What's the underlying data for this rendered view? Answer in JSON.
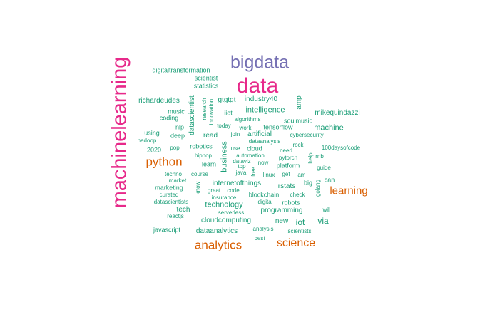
{
  "palette": {
    "pink": "#e7298a",
    "purple": "#7570b3",
    "orange": "#d95f02",
    "green": "#1b9e77"
  },
  "words": [
    {
      "text": "data",
      "color": "pink"
    },
    {
      "text": "bigdata",
      "color": "purple"
    },
    {
      "text": "machinelearning",
      "color": "pink"
    },
    {
      "text": "python",
      "color": "orange"
    },
    {
      "text": "learning",
      "color": "orange"
    },
    {
      "text": "analytics",
      "color": "orange"
    },
    {
      "text": "science",
      "color": "orange"
    },
    {
      "text": "digitaltransformation",
      "color": "green"
    },
    {
      "text": "scientist",
      "color": "green"
    },
    {
      "text": "statistics",
      "color": "green"
    },
    {
      "text": "richardeudes",
      "color": "green"
    },
    {
      "text": "datascientist",
      "color": "green"
    },
    {
      "text": "research",
      "color": "green"
    },
    {
      "text": "innovation",
      "color": "green"
    },
    {
      "text": "gtgtgt",
      "color": "green"
    },
    {
      "text": "industry40",
      "color": "green"
    },
    {
      "text": "amp",
      "color": "green"
    },
    {
      "text": "music",
      "color": "green"
    },
    {
      "text": "coding",
      "color": "green"
    },
    {
      "text": "iiot",
      "color": "green"
    },
    {
      "text": "intelligence",
      "color": "green"
    },
    {
      "text": "mikequindazzi",
      "color": "green"
    },
    {
      "text": "algorithms",
      "color": "green"
    },
    {
      "text": "soulmusic",
      "color": "green"
    },
    {
      "text": "nlp",
      "color": "green"
    },
    {
      "text": "today",
      "color": "green"
    },
    {
      "text": "work",
      "color": "green"
    },
    {
      "text": "tensorflow",
      "color": "green"
    },
    {
      "text": "machine",
      "color": "green"
    },
    {
      "text": "using",
      "color": "green"
    },
    {
      "text": "deep",
      "color": "green"
    },
    {
      "text": "read",
      "color": "green"
    },
    {
      "text": "join",
      "color": "green"
    },
    {
      "text": "artificial",
      "color": "green"
    },
    {
      "text": "cybersecurity",
      "color": "green"
    },
    {
      "text": "hadoop",
      "color": "green"
    },
    {
      "text": "dataanalysis",
      "color": "green"
    },
    {
      "text": "rock",
      "color": "green"
    },
    {
      "text": "2020",
      "color": "green"
    },
    {
      "text": "pop",
      "color": "green"
    },
    {
      "text": "robotics",
      "color": "green"
    },
    {
      "text": "business",
      "color": "green"
    },
    {
      "text": "use",
      "color": "green"
    },
    {
      "text": "cloud",
      "color": "green"
    },
    {
      "text": "need",
      "color": "green"
    },
    {
      "text": "100daysofcode",
      "color": "green"
    },
    {
      "text": "hiphop",
      "color": "green"
    },
    {
      "text": "automation",
      "color": "green"
    },
    {
      "text": "pytorch",
      "color": "green"
    },
    {
      "text": "help",
      "color": "green"
    },
    {
      "text": "rnb",
      "color": "green"
    },
    {
      "text": "learn",
      "color": "green"
    },
    {
      "text": "dataviz",
      "color": "green"
    },
    {
      "text": "now",
      "color": "green"
    },
    {
      "text": "platform",
      "color": "green"
    },
    {
      "text": "top",
      "color": "green"
    },
    {
      "text": "free",
      "color": "green"
    },
    {
      "text": "guide",
      "color": "green"
    },
    {
      "text": "techno",
      "color": "green"
    },
    {
      "text": "course",
      "color": "green"
    },
    {
      "text": "java",
      "color": "green"
    },
    {
      "text": "linux",
      "color": "green"
    },
    {
      "text": "get",
      "color": "green"
    },
    {
      "text": "iam",
      "color": "green"
    },
    {
      "text": "market",
      "color": "green"
    },
    {
      "text": "know",
      "color": "green"
    },
    {
      "text": "internetofthings",
      "color": "green"
    },
    {
      "text": "rstats",
      "color": "green"
    },
    {
      "text": "big",
      "color": "green"
    },
    {
      "text": "golang",
      "color": "green"
    },
    {
      "text": "can",
      "color": "green"
    },
    {
      "text": "marketing",
      "color": "green"
    },
    {
      "text": "great",
      "color": "green"
    },
    {
      "text": "code",
      "color": "green"
    },
    {
      "text": "curated",
      "color": "green"
    },
    {
      "text": "insurance",
      "color": "green"
    },
    {
      "text": "blockchain",
      "color": "green"
    },
    {
      "text": "check",
      "color": "green"
    },
    {
      "text": "datascientists",
      "color": "green"
    },
    {
      "text": "technology",
      "color": "green"
    },
    {
      "text": "digital",
      "color": "green"
    },
    {
      "text": "robots",
      "color": "green"
    },
    {
      "text": "tech",
      "color": "green"
    },
    {
      "text": "will",
      "color": "green"
    },
    {
      "text": "reactjs",
      "color": "green"
    },
    {
      "text": "serverless",
      "color": "green"
    },
    {
      "text": "programming",
      "color": "green"
    },
    {
      "text": "cloudcomputing",
      "color": "green"
    },
    {
      "text": "new",
      "color": "green"
    },
    {
      "text": "iot",
      "color": "green"
    },
    {
      "text": "via",
      "color": "green"
    },
    {
      "text": "javascript",
      "color": "green"
    },
    {
      "text": "dataanalytics",
      "color": "green"
    },
    {
      "text": "analysis",
      "color": "green"
    },
    {
      "text": "scientists",
      "color": "green"
    },
    {
      "text": "best",
      "color": "green"
    }
  ]
}
